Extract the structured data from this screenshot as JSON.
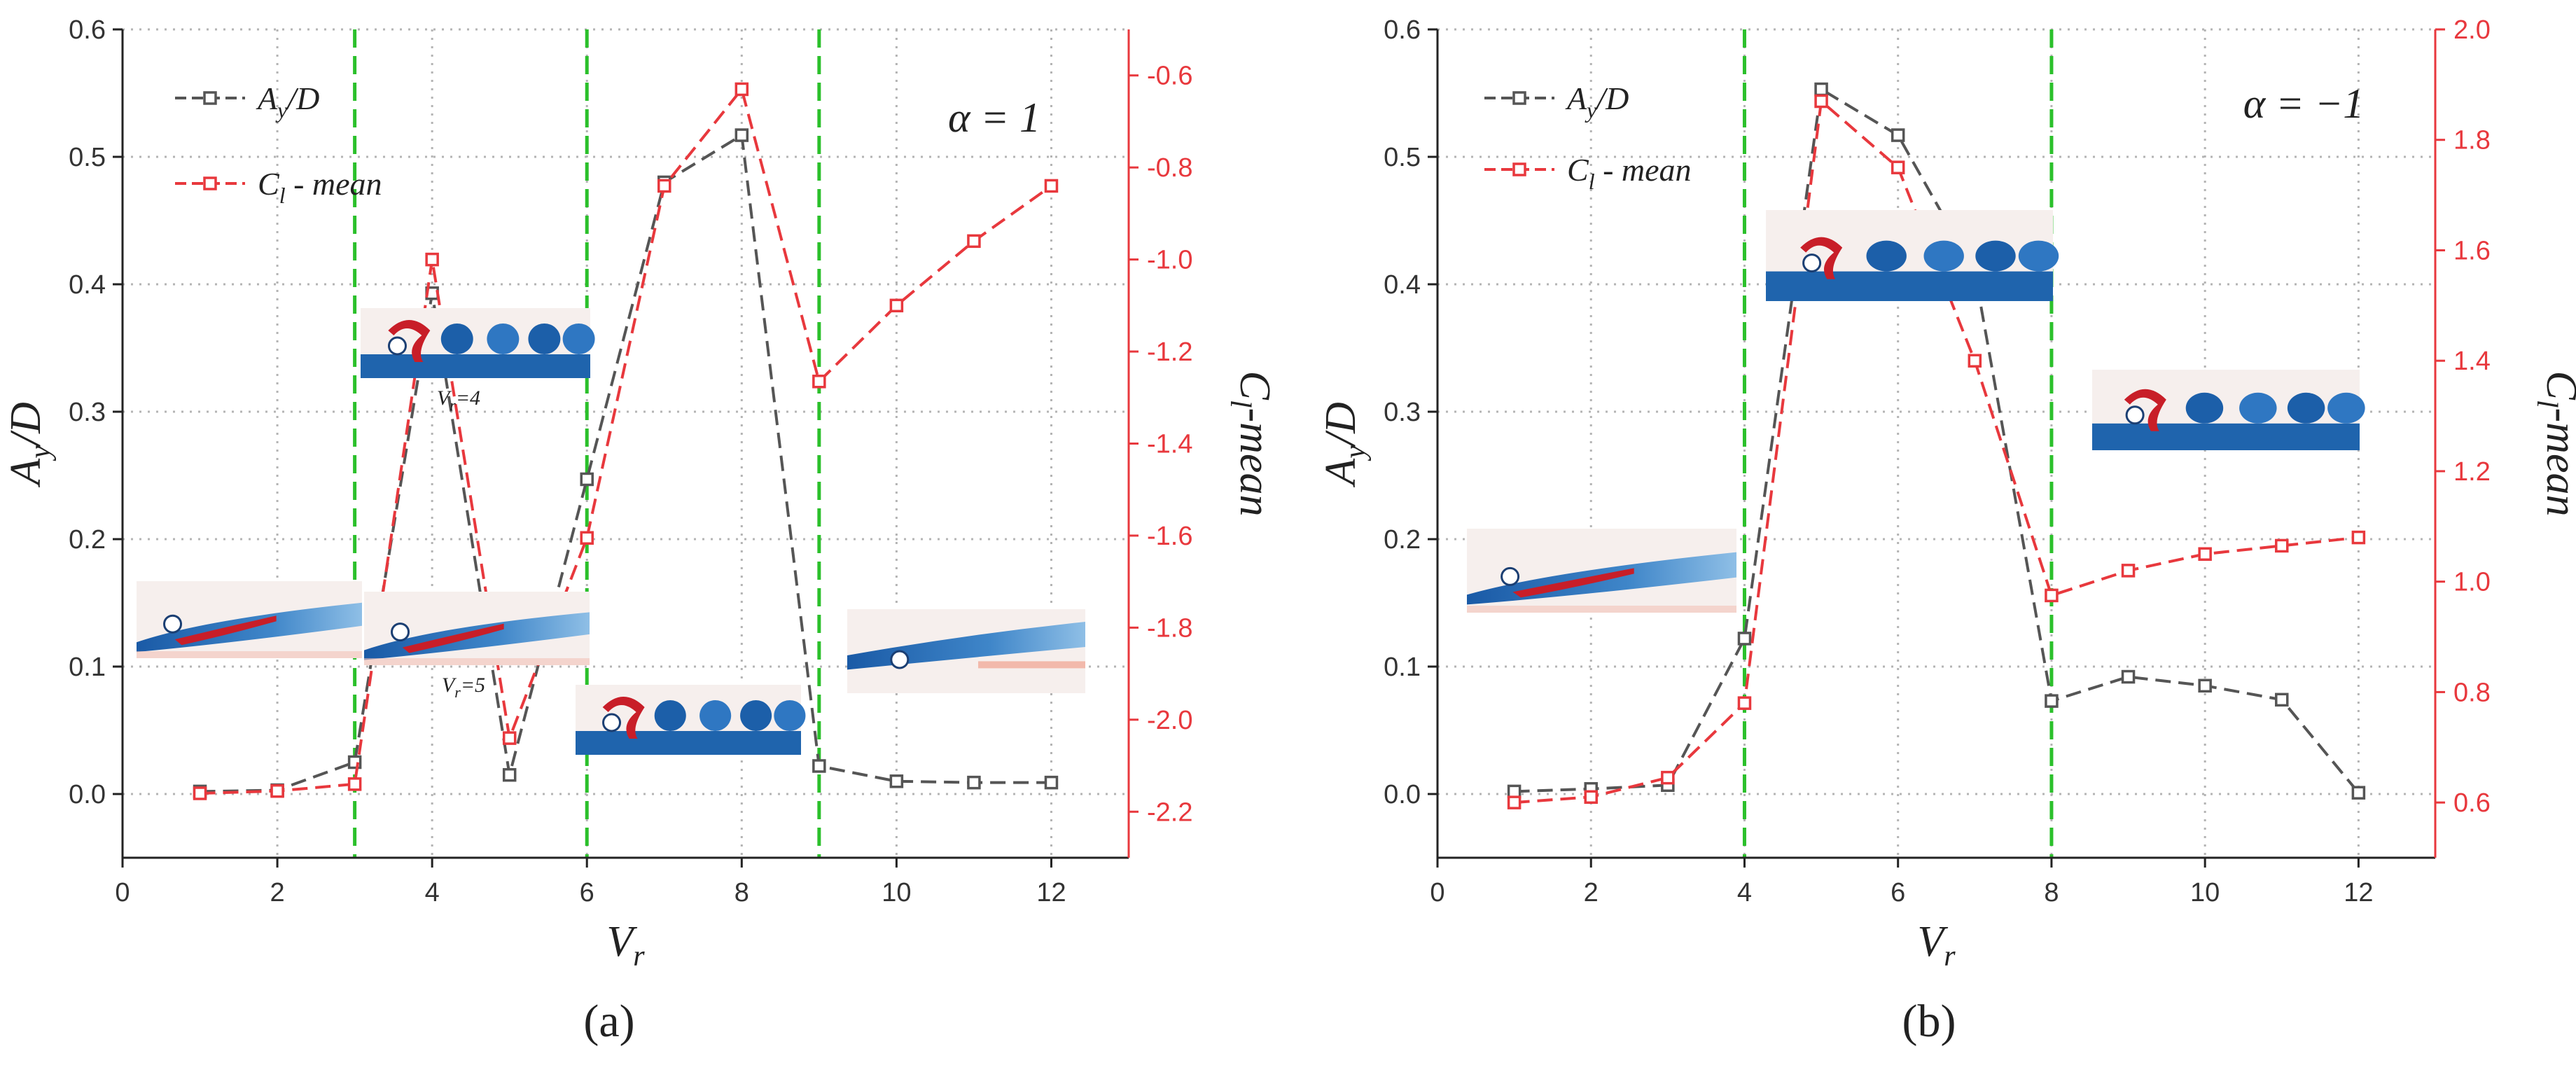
{
  "colors": {
    "left_series": "#555555",
    "right_series": "#e8383d",
    "right_axis": "#e8383d",
    "regime_line": "#2bc02b",
    "grid": "#b4b4b4",
    "flow_blue": "#1f64ad",
    "flow_red": "#c81e28"
  },
  "chart_data": [
    {
      "type": "line",
      "panel_label": "(a)",
      "annotation": "α = 1",
      "xlabel_main": "V",
      "xlabel_sub": "r",
      "ylabel_left_main": "A",
      "ylabel_left_sub": "y",
      "ylabel_left_tail": "/D",
      "ylabel_right_main": "C",
      "ylabel_right_sub": "l",
      "ylabel_right_tail": "-mean",
      "xlim": [
        0,
        13
      ],
      "ylim_left": [
        -0.05,
        0.6
      ],
      "ylim_right": [
        -2.3,
        -0.5
      ],
      "x_ticks": [
        0,
        2,
        4,
        6,
        8,
        10,
        12
      ],
      "y_left_ticks": [
        0.0,
        0.1,
        0.2,
        0.3,
        0.4,
        0.5,
        0.6
      ],
      "y_left_tick_labels": [
        "0.0",
        "0.1",
        "0.2",
        "0.3",
        "0.4",
        "0.5",
        "0.6"
      ],
      "y_right_ticks": [
        -2.2,
        -2.0,
        -1.8,
        -1.6,
        -1.4,
        -1.2,
        -1.0,
        -0.8,
        -0.6
      ],
      "y_right_tick_labels": [
        "-2.2",
        "-2.0",
        "-1.8",
        "-1.6",
        "-1.4",
        "-1.2",
        "-1.0",
        "-0.8",
        "-0.6"
      ],
      "regime_lines": [
        3,
        6,
        9
      ],
      "grid": true,
      "legend_position": "top-left",
      "series": [
        {
          "name_main": "A",
          "name_sub": "y",
          "name_tail": "/D",
          "axis": "left",
          "x": [
            1,
            2,
            3,
            4,
            5,
            6,
            7,
            8,
            9,
            10,
            11,
            12
          ],
          "y": [
            0.002,
            0.003,
            0.025,
            0.393,
            0.015,
            0.247,
            0.48,
            0.517,
            0.022,
            0.01,
            0.009,
            0.009
          ]
        },
        {
          "name_main": "C",
          "name_sub": "l",
          "name_tail": " - mean",
          "axis": "right",
          "x": [
            1,
            2,
            3,
            4,
            5,
            6,
            7,
            8,
            9,
            10,
            11,
            12
          ],
          "y": [
            -2.16,
            -2.155,
            -2.14,
            -1.0,
            -2.04,
            -1.605,
            -0.84,
            -0.63,
            -1.265,
            -1.1,
            -0.96,
            -0.84
          ]
        }
      ],
      "inset_labels": [
        {
          "main": "V",
          "sub": "r",
          "tail": "=4"
        },
        {
          "main": "V",
          "sub": "r",
          "tail": "=5"
        }
      ]
    },
    {
      "type": "line",
      "panel_label": "(b)",
      "annotation": "α = −1",
      "xlabel_main": "V",
      "xlabel_sub": "r",
      "ylabel_left_main": "A",
      "ylabel_left_sub": "y",
      "ylabel_left_tail": "/D",
      "ylabel_right_main": "C",
      "ylabel_right_sub": "l",
      "ylabel_right_tail": "-mean",
      "xlim": [
        0,
        13
      ],
      "ylim_left": [
        -0.05,
        0.6
      ],
      "ylim_right": [
        0.5,
        2.0
      ],
      "x_ticks": [
        0,
        2,
        4,
        6,
        8,
        10,
        12
      ],
      "y_left_ticks": [
        0.0,
        0.1,
        0.2,
        0.3,
        0.4,
        0.5,
        0.6
      ],
      "y_left_tick_labels": [
        "0.0",
        "0.1",
        "0.2",
        "0.3",
        "0.4",
        "0.5",
        "0.6"
      ],
      "y_right_ticks": [
        0.6,
        0.8,
        1.0,
        1.2,
        1.4,
        1.6,
        1.8,
        2.0
      ],
      "y_right_tick_labels": [
        "0.6",
        "0.8",
        "1.0",
        "1.2",
        "1.4",
        "1.6",
        "1.8",
        "2.0"
      ],
      "regime_lines": [
        4,
        8
      ],
      "grid": true,
      "legend_position": "top-left",
      "series": [
        {
          "name_main": "A",
          "name_sub": "y",
          "name_tail": "/D",
          "axis": "left",
          "x": [
            1,
            2,
            3,
            4,
            5,
            6,
            7,
            8,
            9,
            10,
            11,
            12
          ],
          "y": [
            0.002,
            0.004,
            0.007,
            0.122,
            0.553,
            0.517,
            0.41,
            0.073,
            0.092,
            0.085,
            0.074,
            0.001
          ]
        },
        {
          "name_main": "C",
          "name_sub": "l",
          "name_tail": " - mean",
          "axis": "right",
          "x": [
            1,
            2,
            3,
            4,
            5,
            6,
            7,
            8,
            9,
            10,
            11,
            12
          ],
          "y": [
            0.6,
            0.61,
            0.645,
            0.78,
            1.87,
            1.75,
            1.4,
            0.975,
            1.02,
            1.05,
            1.065,
            1.08
          ]
        }
      ],
      "inset_labels": []
    }
  ]
}
